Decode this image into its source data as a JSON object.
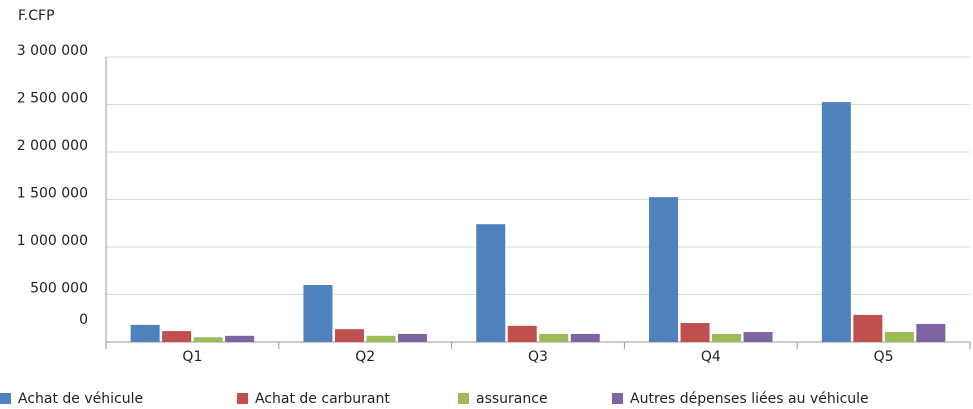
{
  "chart_data": {
    "type": "bar",
    "unit_label": "F.CFP",
    "categories": [
      "Q1",
      "Q2",
      "Q3",
      "Q4",
      "Q5"
    ],
    "series": [
      {
        "name": "Achat de véhicule",
        "color": "#4f81bd",
        "values": [
          180000,
          600000,
          1240000,
          1525000,
          2525000
        ]
      },
      {
        "name": "Achat de carburant",
        "color": "#c0504d",
        "values": [
          115000,
          135000,
          170000,
          200000,
          285000
        ]
      },
      {
        "name": "assurance",
        "color": "#9bbb59",
        "values": [
          50000,
          65000,
          85000,
          85000,
          105000
        ]
      },
      {
        "name": "Autres dépenses liées au véhicule",
        "color": "#8064a2",
        "values": [
          65000,
          85000,
          85000,
          105000,
          190000
        ]
      }
    ],
    "ylim": [
      0,
      3000000
    ],
    "yticks": [
      0,
      {
        "value": 500000,
        "label": "500 000"
      },
      {
        "value": 1000000,
        "label": "1 000 000"
      },
      {
        "value": 1500000,
        "label": "1 500 000"
      },
      {
        "value": 2000000,
        "label": "2 000 000"
      },
      {
        "value": 2500000,
        "label": "2 500 000"
      },
      {
        "value": 3000000,
        "label": "3 000 000"
      }
    ],
    "grid": true,
    "legend": "bottom"
  }
}
